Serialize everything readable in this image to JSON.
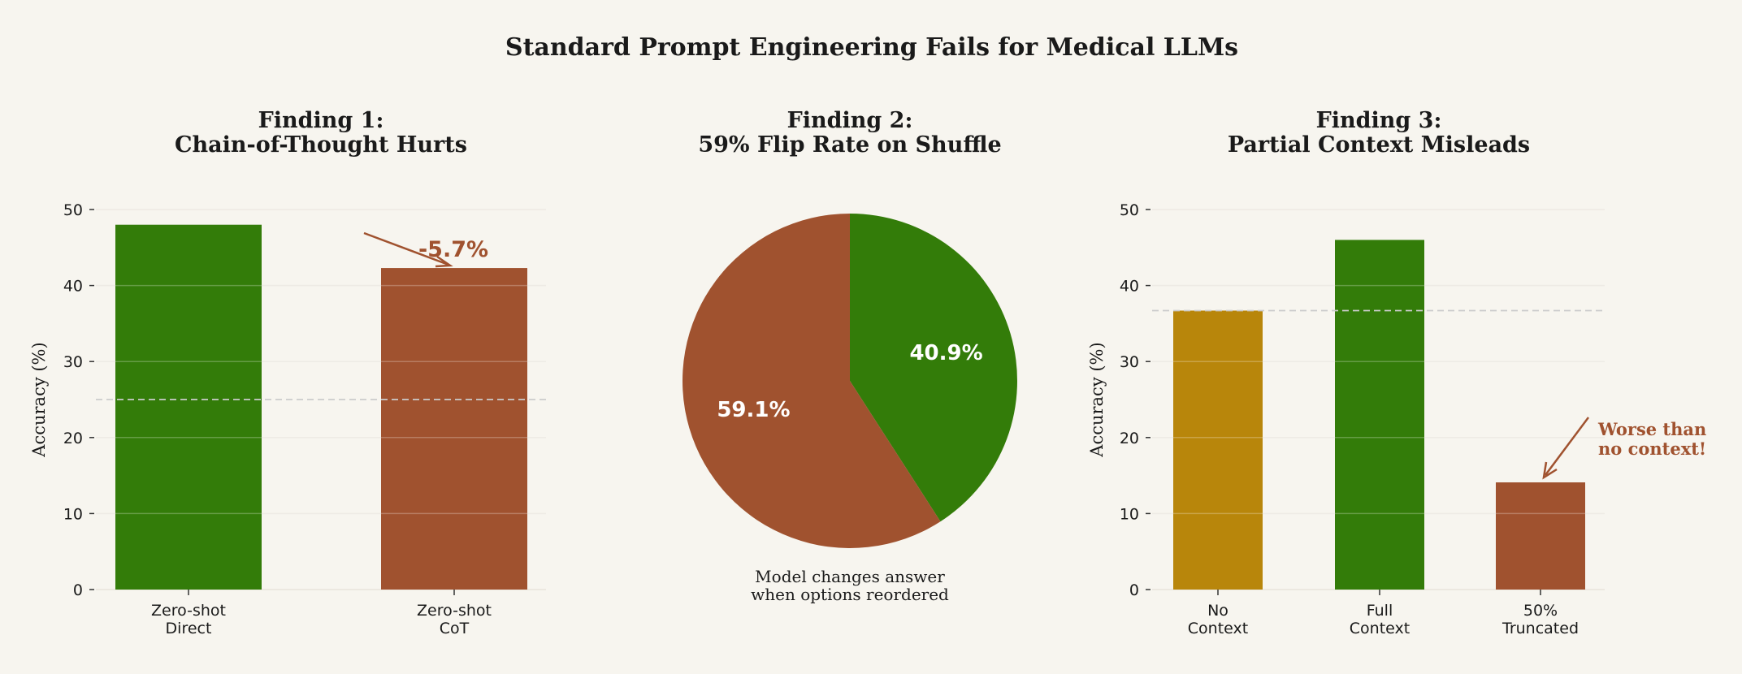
{
  "title": "Standard Prompt Engineering Fails for Medical LLMs",
  "colors": {
    "background": "#f7f5ef",
    "green": "#337c09",
    "rust": "#a0522f",
    "gold": "#b8860b",
    "grid": "#e8e4dc",
    "dashed": "#cccccc",
    "text": "#1a1a1a"
  },
  "chart_data": [
    {
      "type": "bar",
      "title_line1": "Finding 1:",
      "title_line2": "Chain-of-Thought Hurts",
      "ylabel": "Accuracy (%)",
      "ylim": [
        0,
        50
      ],
      "yticks": [
        "0",
        "10",
        "20",
        "30",
        "40",
        "50"
      ],
      "categories": [
        [
          "Zero-shot",
          "Direct"
        ],
        [
          "Zero-shot",
          "CoT"
        ]
      ],
      "values": [
        48.0,
        42.3
      ],
      "bar_colors": [
        "#337c09",
        "#a0522f"
      ],
      "reference_line": 25,
      "annotation": "-5.7%",
      "grid": true
    },
    {
      "type": "pie",
      "title_line1": "Finding 2:",
      "title_line2": "59% Flip Rate on Shuffle",
      "slices": [
        {
          "label": "40.9%",
          "value": 40.9,
          "color": "#337c09"
        },
        {
          "label": "59.1%",
          "value": 59.1,
          "color": "#a0522f"
        }
      ],
      "caption_line1": "Model changes answer",
      "caption_line2": "when options reordered"
    },
    {
      "type": "bar",
      "title_line1": "Finding 3:",
      "title_line2": "Partial Context Misleads",
      "ylabel": "Accuracy (%)",
      "ylim": [
        0,
        50
      ],
      "yticks": [
        "0",
        "10",
        "20",
        "30",
        "40",
        "50"
      ],
      "categories": [
        [
          "No",
          "Context"
        ],
        [
          "Full",
          "Context"
        ],
        [
          "50%",
          "Truncated"
        ]
      ],
      "values": [
        36.7,
        46.0,
        14.1
      ],
      "bar_colors": [
        "#b8860b",
        "#337c09",
        "#a0522f"
      ],
      "reference_line": 36.7,
      "annotation_line1": "Worse than",
      "annotation_line2": "no context!",
      "grid": true
    }
  ]
}
